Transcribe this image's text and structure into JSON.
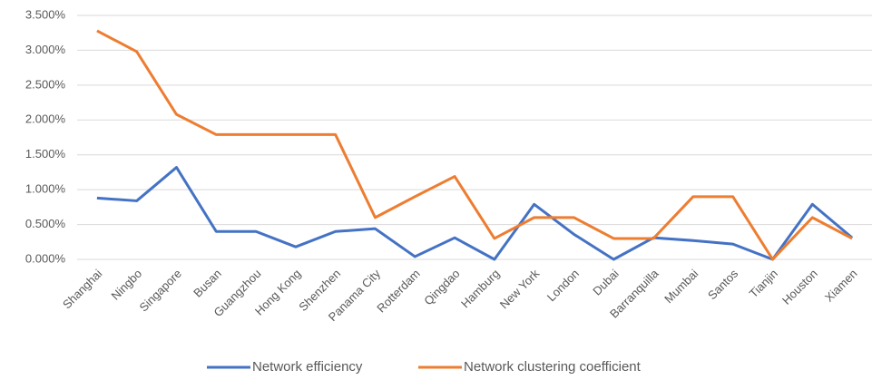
{
  "chart_data": {
    "type": "line",
    "categories": [
      "Shanghai",
      "Ningbo",
      "Singapore",
      "Busan",
      "Guangzhou",
      "Hong Kong",
      "Shenzhen",
      "Panama City",
      "Rotterdam",
      "Qingdao",
      "Hamburg",
      "New York",
      "London",
      "Dubai",
      "Barranquilla",
      "Mumbai",
      "Santos",
      "Tianjin",
      "Houston",
      "Xiamen"
    ],
    "series": [
      {
        "name": "Network efficiency",
        "color": "#4472c4",
        "values": [
          0.88,
          0.84,
          1.32,
          0.4,
          0.4,
          0.18,
          0.4,
          0.44,
          0.04,
          0.31,
          0.0,
          0.79,
          0.36,
          0.0,
          0.31,
          0.27,
          0.22,
          0.0,
          0.79,
          0.31
        ]
      },
      {
        "name": "Network clustering coefficient",
        "color": "#ed7d31",
        "values": [
          3.28,
          2.98,
          2.08,
          1.79,
          1.79,
          1.79,
          1.79,
          0.6,
          0.9,
          1.19,
          0.3,
          0.6,
          0.6,
          0.3,
          0.3,
          0.9,
          0.9,
          0.0,
          0.6,
          0.3
        ]
      }
    ],
    "ylim": [
      0,
      3.5
    ],
    "yticks": [
      {
        "value": 0,
        "label": "0.000%"
      },
      {
        "value": 0.5,
        "label": "0.500%"
      },
      {
        "value": 1,
        "label": "1.000%"
      },
      {
        "value": 1.5,
        "label": "1.500%"
      },
      {
        "value": 2,
        "label": "2.000%"
      },
      {
        "value": 2.5,
        "label": "2.500%"
      },
      {
        "value": 3,
        "label": "3.000%"
      },
      {
        "value": 3.5,
        "label": "3.500%"
      }
    ],
    "grid": true,
    "legend": "bottom"
  }
}
